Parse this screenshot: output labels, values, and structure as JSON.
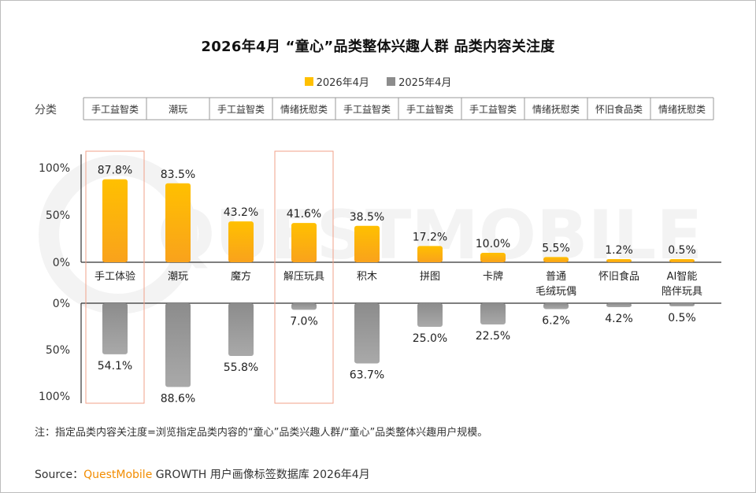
{
  "title": "2026年4月 “童心”品类整体兴趣人群 品类内容关注度",
  "legend": {
    "current": "2026年4月",
    "previous": "2025年4月"
  },
  "colors": {
    "current": "#ffc000",
    "current_bottom": "#f9a21c",
    "previous": "#8c8c8c",
    "previous_light": "#a9a9a9",
    "highlight": "#f2a08a"
  },
  "category_row_label": "分类",
  "note": "注：指定品类内容关注度=浏览指定品类内容的“童心”品类兴趣人群/“童心”品类整体兴趣用户规模。",
  "source": {
    "prefix": "Source：",
    "brand": "QuestMobile",
    "rest": " GROWTH 用户画像标签数据库 2026年4月"
  },
  "watermark": "QUESTMOBILE",
  "chart_data": {
    "type": "bar",
    "title": "2026年4月 “童心”品类整体兴趣人群 品类内容关注度",
    "categories": [
      "手工体验",
      "潮玩",
      "魔方",
      "解压玩具",
      "积木",
      "拼图",
      "卡牌",
      "普通\n毛绒玩偶",
      "怀旧食品",
      "AI智能\n陪伴玩具"
    ],
    "groups": [
      "手工益智类",
      "潮玩",
      "手工益智类",
      "情绪抚慰类",
      "手工益智类",
      "手工益智类",
      "手工益智类",
      "情绪抚慰类",
      "怀旧食品类",
      "情绪抚慰类"
    ],
    "series": [
      {
        "name": "2026年4月",
        "values": [
          87.8,
          83.5,
          43.2,
          41.6,
          38.5,
          17.2,
          10.0,
          5.5,
          1.2,
          0.5
        ]
      },
      {
        "name": "2025年4月",
        "values": [
          54.1,
          88.6,
          55.8,
          7.0,
          63.7,
          25.0,
          22.5,
          6.2,
          4.2,
          0.5
        ]
      }
    ],
    "value_labels": {
      "current": [
        "87.8%",
        "83.5%",
        "43.2%",
        "41.6%",
        "38.5%",
        "17.2%",
        "10.0%",
        "5.5%",
        "1.2%",
        "0.5%"
      ],
      "previous": [
        "54.1%",
        "88.6%",
        "55.8%",
        "7.0%",
        "63.7%",
        "25.0%",
        "22.5%",
        "6.2%",
        "4.2%",
        "0.5%"
      ]
    },
    "y_ticks_top": [
      "100%",
      "50%",
      "0%"
    ],
    "y_ticks_bottom": [
      "0%",
      "50%",
      "100%"
    ],
    "ylim": [
      0,
      100
    ],
    "highlighted": [
      0,
      3
    ],
    "legend_position": "top-center",
    "grid": false
  }
}
